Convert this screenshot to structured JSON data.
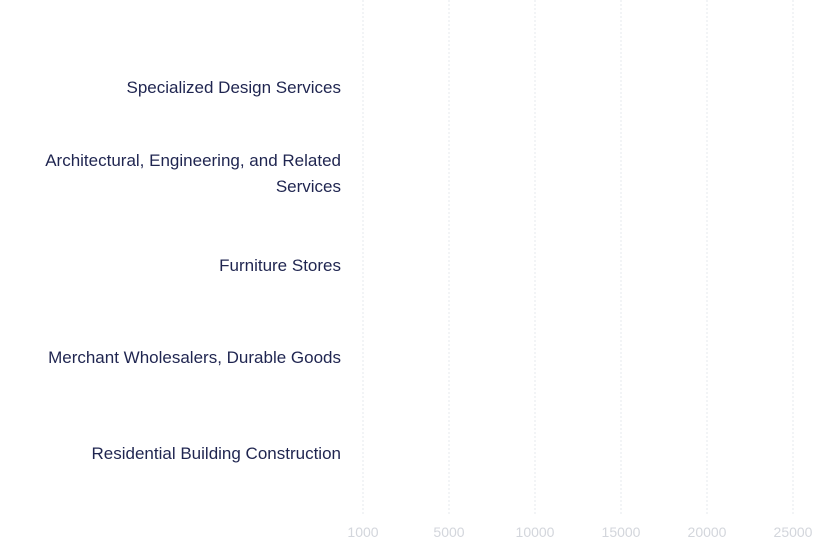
{
  "chart_data": {
    "type": "bar",
    "orientation": "horizontal",
    "categories": [
      "Specialized Design Services",
      "Architectural, Engineering, and Related Services",
      "Furniture Stores",
      "Merchant Wholesalers, Durable Goods",
      "Residential Building Construction"
    ],
    "x_ticks": [
      "1000",
      "5000",
      "10000",
      "15000",
      "20000",
      "25000"
    ],
    "grid": true,
    "colors": {
      "label": "#1f2550",
      "tick": "#d3d6dc",
      "grid": "#e6e8ec"
    }
  }
}
